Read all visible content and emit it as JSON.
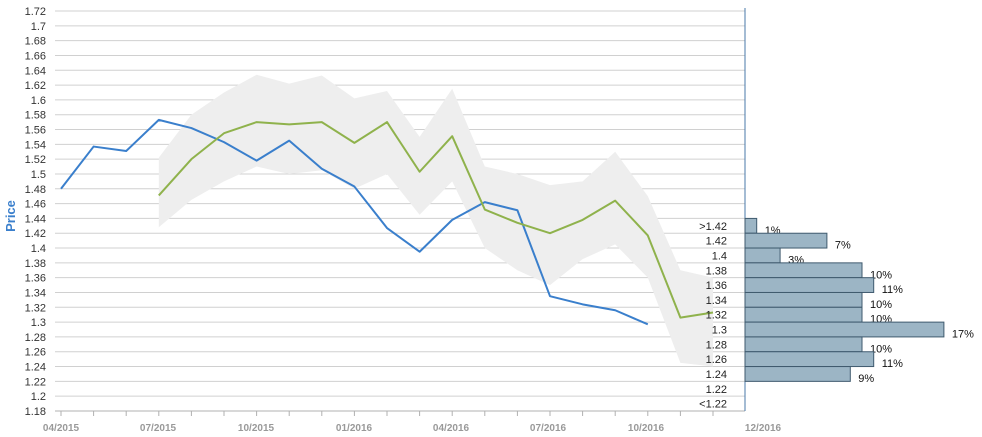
{
  "chart_data": {
    "type": "line",
    "ylabel": "Price",
    "ylim": [
      1.18,
      1.72
    ],
    "y_ticks": [
      "1.72",
      "1.7",
      "1.68",
      "1.66",
      "1.64",
      "1.62",
      "1.6",
      "1.58",
      "1.56",
      "1.54",
      "1.52",
      "1.5",
      "1.48",
      "1.46",
      "1.44",
      "1.42",
      "1.4",
      "1.38",
      "1.36",
      "1.34",
      "1.32",
      "1.3",
      "1.28",
      "1.26",
      "1.24",
      "1.22",
      "1.2",
      "1.18"
    ],
    "x_ticks": [
      "04/2015",
      "07/2015",
      "10/2015",
      "01/2016",
      "04/2016",
      "07/2016",
      "10/2016",
      "12/2016"
    ],
    "x_months": [
      "2015-04",
      "2015-05",
      "2015-06",
      "2015-07",
      "2015-08",
      "2015-09",
      "2015-10",
      "2015-11",
      "2015-12",
      "2016-01",
      "2016-02",
      "2016-03",
      "2016-04",
      "2016-05",
      "2016-06",
      "2016-07",
      "2016-08",
      "2016-09",
      "2016-10",
      "2016-11",
      "2016-12"
    ],
    "series": [
      {
        "color": "#3a7fcc",
        "values": [
          1.48,
          1.537,
          1.531,
          1.573,
          1.562,
          1.543,
          1.518,
          1.545,
          1.507,
          1.483,
          1.427,
          1.395,
          1.438,
          1.462,
          1.451,
          1.335,
          1.324,
          1.316,
          1.297,
          null,
          null
        ]
      },
      {
        "color": "#8fb24c",
        "values": [
          null,
          null,
          null,
          1.471,
          1.52,
          1.555,
          1.57,
          1.567,
          1.57,
          1.542,
          1.57,
          1.503,
          1.551,
          1.452,
          1.434,
          1.42,
          1.438,
          1.464,
          1.417,
          1.306,
          1.313
        ]
      }
    ],
    "band": {
      "color": "#eeeeee",
      "upper": [
        null,
        null,
        null,
        1.522,
        1.58,
        1.61,
        1.634,
        1.622,
        1.633,
        1.602,
        1.612,
        1.55,
        1.615,
        1.51,
        1.5,
        1.485,
        1.49,
        1.53,
        1.47,
        1.37,
        1.36
      ],
      "lower": [
        null,
        null,
        null,
        1.428,
        1.465,
        1.49,
        1.51,
        1.5,
        1.505,
        1.48,
        1.5,
        1.445,
        1.49,
        1.4,
        1.37,
        1.35,
        1.385,
        1.405,
        1.36,
        1.245,
        1.24
      ]
    },
    "distribution": {
      "color": "#9cb5c5",
      "bins": [
        {
          "label": ">1.42",
          "price": 1.43,
          "percent": 1,
          "text": "1%"
        },
        {
          "label": "1.42",
          "price": 1.41,
          "percent": 7,
          "text": "7%"
        },
        {
          "label": "1.4",
          "price": 1.39,
          "percent": 3,
          "text": "3%"
        },
        {
          "label": "1.38",
          "price": 1.37,
          "percent": 10,
          "text": "10%"
        },
        {
          "label": "1.36",
          "price": 1.35,
          "percent": 11,
          "text": "11%"
        },
        {
          "label": "1.34",
          "price": 1.33,
          "percent": 10,
          "text": "10%"
        },
        {
          "label": "1.32",
          "price": 1.31,
          "percent": 10,
          "text": "10%"
        },
        {
          "label": "1.3",
          "price": 1.29,
          "percent": 17,
          "text": "17%"
        },
        {
          "label": "1.28",
          "price": 1.27,
          "percent": 10,
          "text": "10%"
        },
        {
          "label": "1.26",
          "price": 1.25,
          "percent": 11,
          "text": "11%"
        },
        {
          "label": "1.24",
          "price": 1.23,
          "percent": 9,
          "text": "9%"
        },
        {
          "label": "1.22",
          "price": 1.21,
          "percent": null,
          "text": ""
        },
        {
          "label": "<1.22",
          "price": 1.19,
          "percent": null,
          "text": ""
        }
      ]
    }
  }
}
